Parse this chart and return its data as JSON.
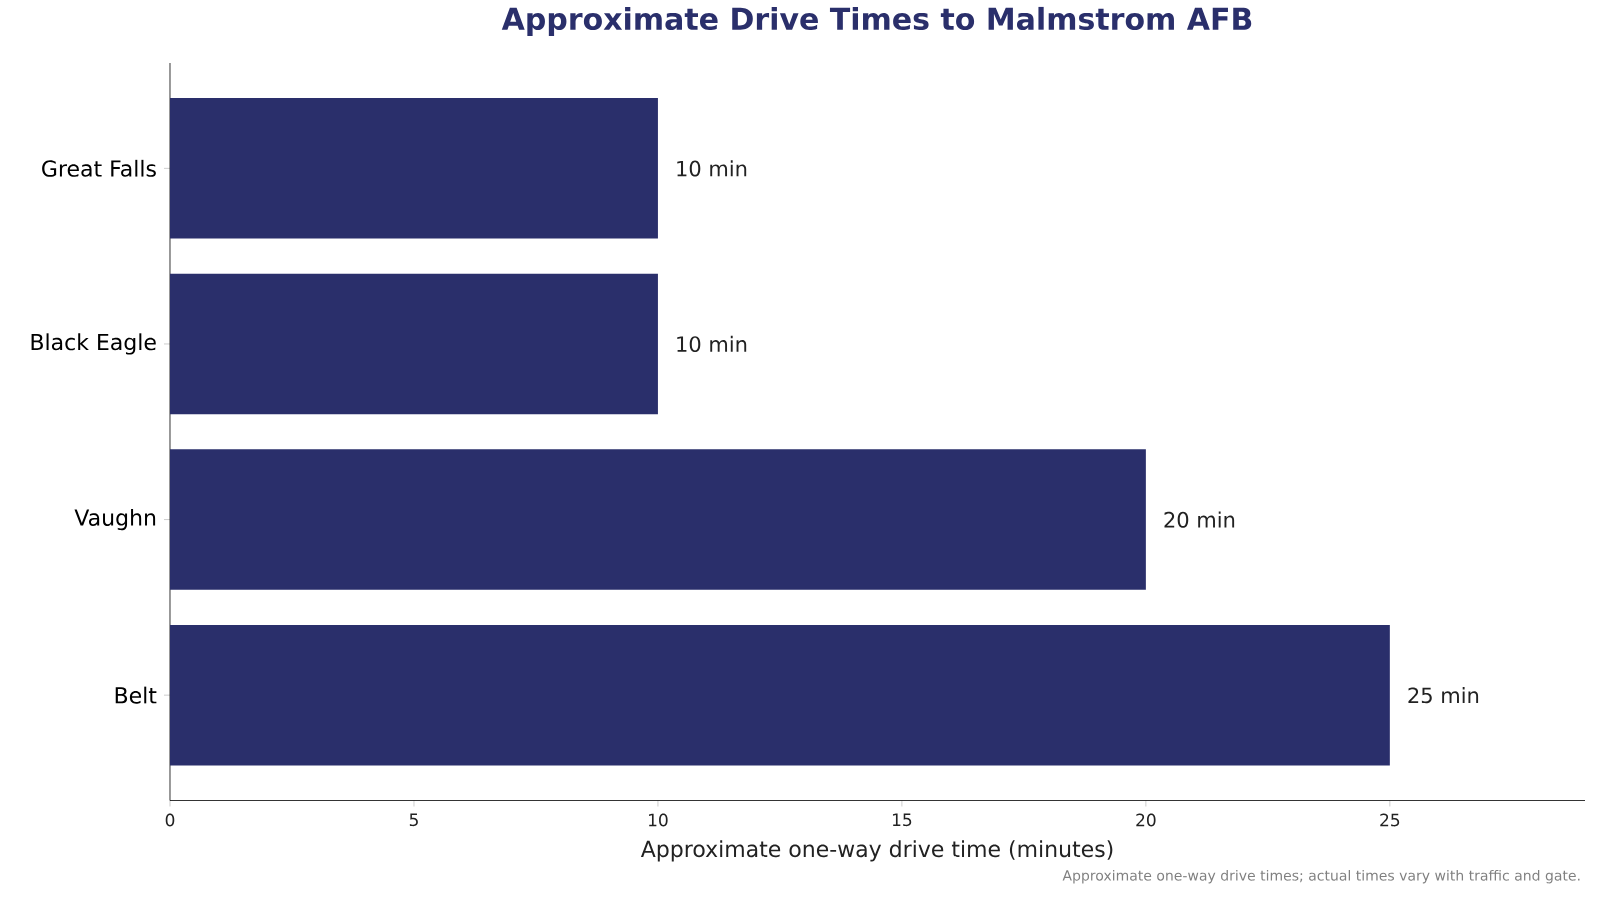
{
  "chart_data": {
    "type": "bar",
    "orientation": "horizontal",
    "title": "Approximate Drive Times to Malmstrom AFB",
    "xlabel": "Approximate one-way drive time (minutes)",
    "categories": [
      "Great Falls",
      "Black Eagle",
      "Vaughn",
      "Belt"
    ],
    "values": [
      10,
      10,
      20,
      25
    ],
    "color": "#2a2f6b",
    "value_labels": [
      "10 min",
      "10 min",
      "20 min",
      "25 min"
    ],
    "xlim": [
      0,
      29
    ],
    "xticks": [
      0,
      5,
      10,
      15,
      20,
      25
    ],
    "grid": false,
    "annotations": [
      "Approximate one-way drive times; actual times vary with traffic and gate."
    ]
  }
}
